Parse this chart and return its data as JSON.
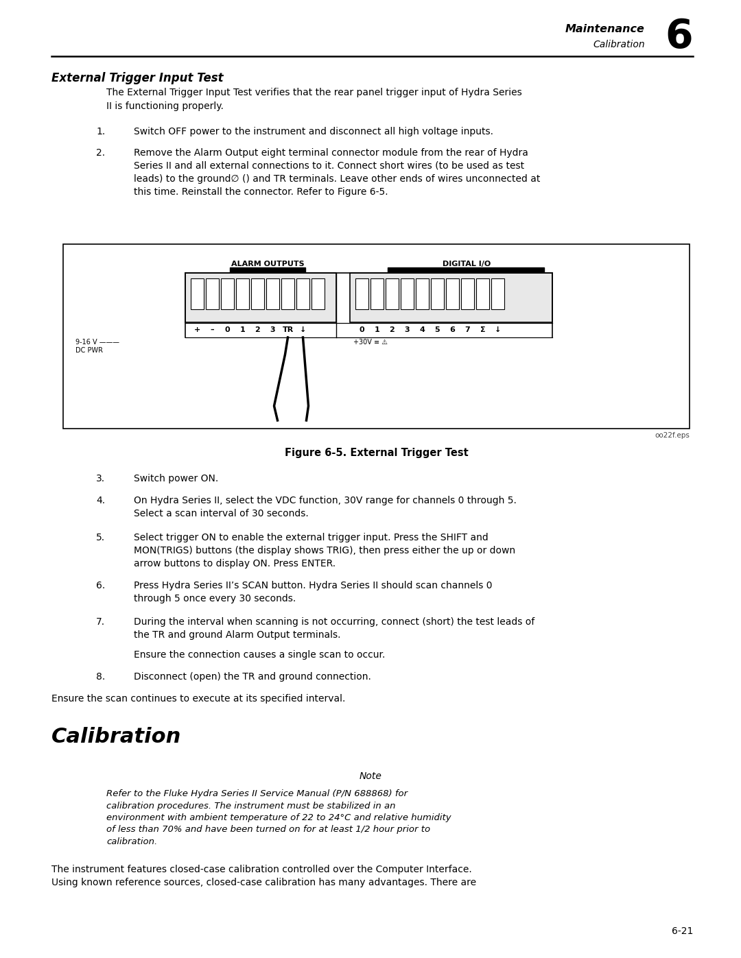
{
  "page_bg": "#ffffff",
  "chapter_num": "6",
  "header_maintenance": "Maintenance",
  "header_calibration": "Calibration",
  "section_title": "External Trigger Input Test",
  "intro_text": "The External Trigger Input Test verifies that the rear panel trigger input of Hydra Series\nII is functioning properly.",
  "step1": "Switch OFF power to the instrument and disconnect all high voltage inputs.",
  "step2": "Remove the Alarm Output eight terminal connector module from the rear of Hydra\nSeries II and all external connections to it. Connect short wires (to be used as test\nleads) to the ground∅ () and TR terminals. Leave other ends of wires unconnected at\nthis time. Reinstall the connector. Refer to Figure 6-5.",
  "figure_caption": "Figure 6-5. External Trigger Test",
  "figure_id": "oo22f.eps",
  "alarm_outputs_label": "ALARM OUTPUTS",
  "digital_io_label": "DIGITAL I/O",
  "dc_pwr_label": "9-16 V ———\nDC PWR",
  "plus30v_label": "+30V ≡ ⚠",
  "step3": "Switch power ON.",
  "step4": "On Hydra Series II, select the VDC function, 30V range for channels 0 through 5.\nSelect a scan interval of 30 seconds.",
  "step5": "Select trigger ON to enable the external trigger input. Press the SHIFT and\nMON(TRIGS) buttons (the display shows TRIG), then press either the up or down\narrow buttons to display ON. Press ENTER.",
  "step6": "Press Hydra Series II’s SCAN button. Hydra Series II should scan channels 0\nthrough 5 once every 30 seconds.",
  "step7": "During the interval when scanning is not occurring, connect (short) the test leads of\nthe TR and ground Alarm Output terminals.",
  "step7_sub": "Ensure the connection causes a single scan to occur.",
  "step8": "Disconnect (open) the TR and ground connection.",
  "ensure_text": "Ensure the scan continues to execute at its specified interval.",
  "calibration_title": "Calibration",
  "note_title": "Note",
  "note_text": "Refer to the Fluke Hydra Series II Service Manual (P/N 688868) for\ncalibration procedures. The instrument must be stabilized in an\nenvironment with ambient temperature of 22 to 24°C and relative humidity\nof less than 70% and have been turned on for at least 1/2 hour prior to\ncalibration.",
  "closing_text": "The instrument features closed-case calibration controlled over the Computer Interface.\nUsing known reference sources, closed-case calibration has many advantages. There are",
  "page_num": "6-21",
  "text_color": "#000000"
}
